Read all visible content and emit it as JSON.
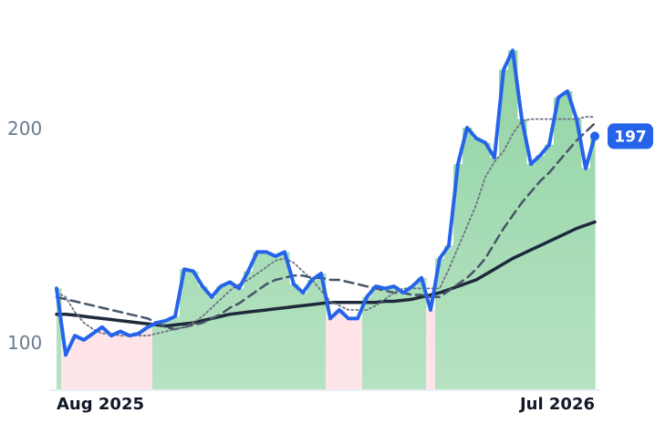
{
  "chart_data": {
    "type": "line",
    "categories": [
      "Aug 2025",
      null,
      null,
      null,
      null,
      null,
      null,
      null,
      null,
      null,
      null,
      null,
      null,
      null,
      null,
      null,
      null,
      null,
      null,
      null,
      null,
      null,
      null,
      null,
      null,
      null,
      null,
      null,
      null,
      null,
      null,
      null,
      null,
      null,
      null,
      null,
      null,
      null,
      null,
      null,
      null,
      null,
      null,
      null,
      null,
      null,
      null,
      null,
      null,
      null,
      null,
      null,
      null,
      null,
      null,
      null,
      null,
      null,
      null,
      "Jul 2026"
    ],
    "series": [
      {
        "color": "#2563eb",
        "style": "solid",
        "width": 4,
        "values": [
          126,
          95,
          104,
          102,
          105,
          108,
          104,
          106,
          104,
          105,
          108,
          110,
          111,
          113,
          135,
          134,
          127,
          122,
          127,
          129,
          126,
          134,
          143,
          143,
          141,
          143,
          128,
          124,
          130,
          133,
          112,
          116,
          112,
          112,
          122,
          127,
          126,
          127,
          124,
          127,
          131,
          116,
          140,
          146,
          184,
          201,
          196,
          194,
          187,
          228,
          237,
          205,
          184,
          188,
          193,
          215,
          218,
          205,
          182,
          197
        ]
      },
      {
        "color": "#6b7280",
        "style": "dotted",
        "width": 1.8,
        "values": [
          124,
          122,
          115,
          110,
          107,
          105,
          105,
          104,
          104,
          104,
          104,
          105,
          106,
          107,
          108,
          110,
          113,
          117,
          121,
          125,
          128,
          130,
          133,
          136,
          139,
          140,
          138,
          134,
          130,
          125,
          120,
          118,
          116,
          116,
          116,
          118,
          121,
          124,
          126,
          126,
          126,
          126,
          126,
          135,
          145,
          155,
          165,
          178,
          185,
          190,
          198,
          204,
          205,
          205,
          205,
          205,
          205,
          205,
          206,
          206
        ]
      },
      {
        "color": "#475569",
        "style": "dashed",
        "width": 2.5,
        "values": [
          122,
          121,
          120,
          119,
          118,
          117,
          116,
          115,
          114,
          113,
          112,
          110,
          108,
          107,
          108,
          109,
          110,
          112,
          114,
          117,
          119,
          122,
          125,
          128,
          130,
          131,
          132,
          132,
          131,
          131,
          130,
          130,
          129,
          128,
          127,
          126,
          125,
          124,
          124,
          123,
          123,
          122,
          122,
          125,
          128,
          131,
          135,
          140,
          147,
          154,
          160,
          166,
          171,
          176,
          180,
          185,
          190,
          195,
          199,
          203
        ]
      },
      {
        "color": "#1e293b",
        "style": "solid",
        "width": 3.5,
        "values": [
          114,
          114,
          113.5,
          113,
          112.5,
          112,
          111.5,
          111,
          110.5,
          110,
          109.5,
          109,
          108.5,
          109,
          109.5,
          110,
          111,
          112,
          113,
          114,
          114.5,
          115,
          115.5,
          116,
          116.5,
          117,
          117.5,
          118,
          118.5,
          119,
          119.5,
          119.5,
          119.5,
          119.5,
          119.5,
          119.5,
          120,
          120,
          120.5,
          121,
          122,
          123,
          124,
          125.5,
          127,
          128.5,
          130,
          132.5,
          135,
          137.5,
          140,
          142,
          144,
          146,
          148,
          150,
          152,
          154,
          155.5,
          157
        ]
      }
    ],
    "area_above_color": "#8fd3a2",
    "area_below_color": "#fdd8df",
    "ylim": [
      79,
      252
    ],
    "yticks": [
      100,
      200
    ],
    "grid": false
  }
}
